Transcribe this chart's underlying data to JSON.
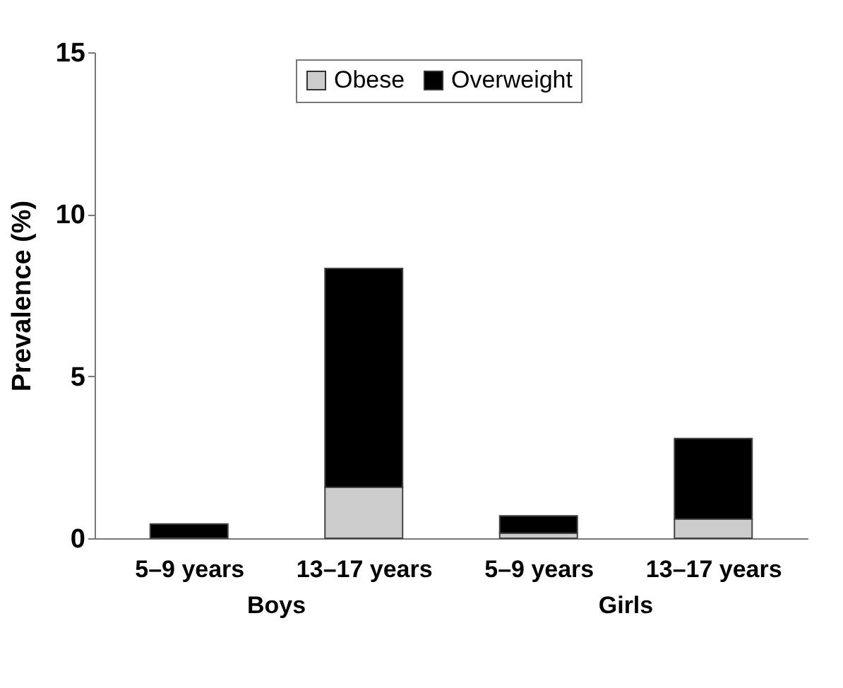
{
  "chart_data": {
    "type": "bar",
    "stacked": true,
    "ylabel": "Prevalence (%)",
    "categories": [
      "5–9 years",
      "13–17 years",
      "5–9 years",
      "13–17 years"
    ],
    "series": [
      {
        "name": "Obese",
        "color": "#cccccc",
        "values": [
          0,
          1.57,
          0.15,
          0.59
        ]
      },
      {
        "name": "Overweight",
        "color": "#000000",
        "values": [
          0.44,
          6.76,
          0.54,
          2.49
        ]
      }
    ],
    "ylim": [
      0,
      15
    ],
    "yticks": [
      0,
      5,
      10,
      15
    ],
    "legend": "top",
    "grid": false,
    "annotations": [
      "Boys",
      "Girls"
    ]
  }
}
